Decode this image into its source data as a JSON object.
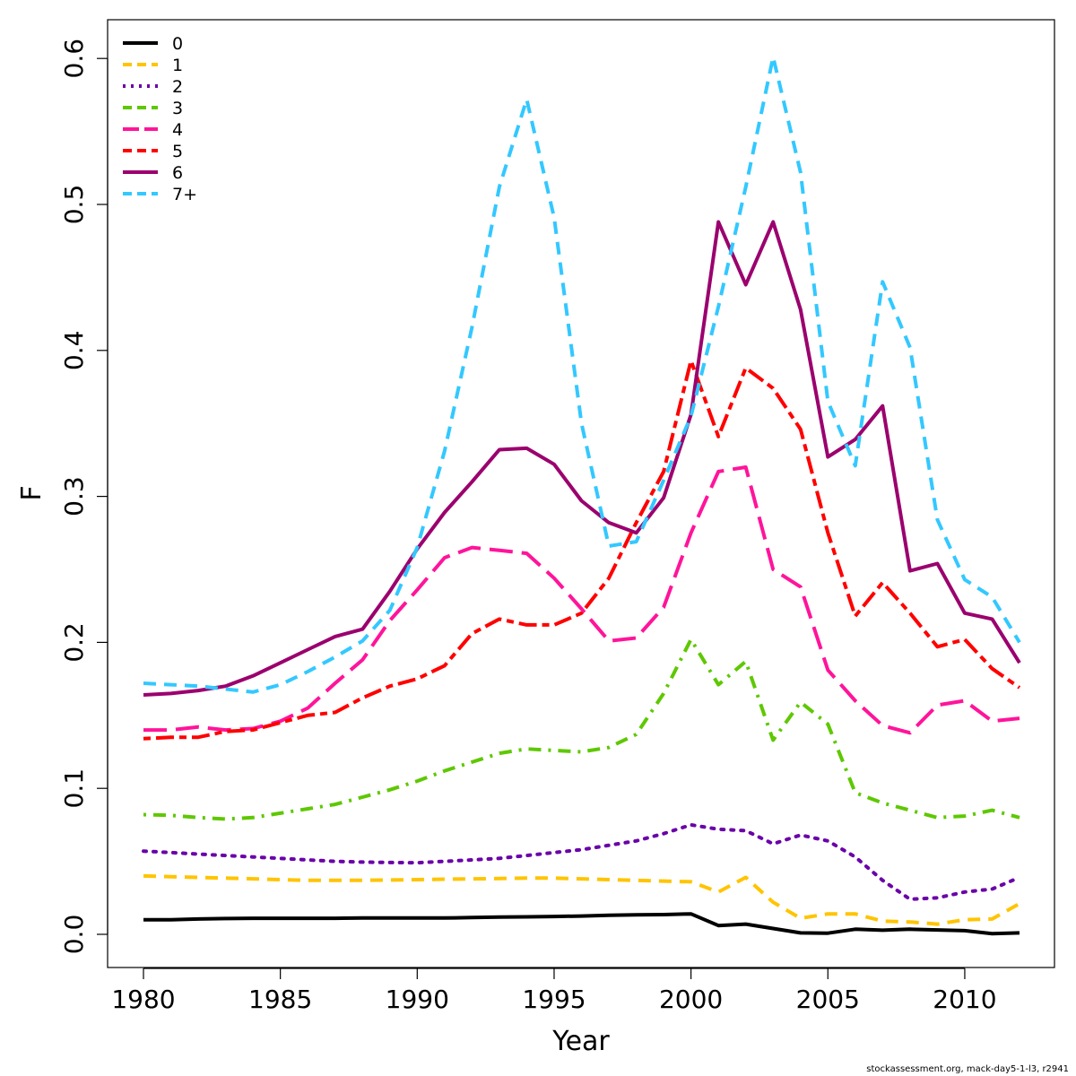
{
  "chart_data": {
    "type": "line",
    "title": "",
    "xlabel": "Year",
    "ylabel": "F",
    "xlim": [
      1978.7,
      1979.0
    ],
    "ylim": [
      -0.023,
      0.628
    ],
    "x_ticks": [
      "1980",
      "1985",
      "1990",
      "1995",
      "2000",
      "2005",
      "2010"
    ],
    "y_ticks": [
      "0.0",
      "0.1",
      "0.2",
      "0.3",
      "0.4",
      "0.5",
      "0.6"
    ],
    "legend_position": "top-left",
    "x": [
      1980,
      1981,
      1982,
      1983,
      1984,
      1985,
      1986,
      1987,
      1988,
      1989,
      1990,
      1991,
      1992,
      1993,
      1994,
      1995,
      1996,
      1997,
      1998,
      1999,
      2000,
      2001,
      2002,
      2003,
      2004,
      2005,
      2006,
      2007,
      2008,
      2009,
      2010,
      2011,
      2012
    ],
    "series": [
      {
        "name": "0",
        "color": "#000000",
        "dash": "solid",
        "values": [
          0.01,
          0.01,
          0.0105,
          0.0108,
          0.011,
          0.011,
          0.011,
          0.011,
          0.0112,
          0.0112,
          0.0112,
          0.0112,
          0.0115,
          0.0118,
          0.012,
          0.0122,
          0.0125,
          0.013,
          0.0133,
          0.0135,
          0.014,
          0.006,
          0.007,
          0.004,
          0.001,
          0.0008,
          0.0035,
          0.0028,
          0.0035,
          0.003,
          0.0025,
          0.0005,
          0.001
        ]
      },
      {
        "name": "1",
        "color": "#ffc400",
        "dash": "dashed",
        "values": [
          0.04,
          0.0395,
          0.039,
          0.0385,
          0.038,
          0.0375,
          0.037,
          0.037,
          0.037,
          0.0372,
          0.0375,
          0.0378,
          0.038,
          0.0382,
          0.0385,
          0.0385,
          0.038,
          0.0375,
          0.037,
          0.0365,
          0.036,
          0.029,
          0.039,
          0.022,
          0.011,
          0.014,
          0.014,
          0.009,
          0.0085,
          0.007,
          0.01,
          0.0105,
          0.021
        ]
      },
      {
        "name": "2",
        "color": "#6a00a8",
        "dash": "dotted",
        "values": [
          0.057,
          0.056,
          0.055,
          0.054,
          0.053,
          0.052,
          0.051,
          0.05,
          0.0495,
          0.0492,
          0.049,
          0.05,
          0.051,
          0.052,
          0.054,
          0.056,
          0.058,
          0.061,
          0.064,
          0.069,
          0.075,
          0.072,
          0.071,
          0.062,
          0.068,
          0.064,
          0.053,
          0.037,
          0.024,
          0.025,
          0.029,
          0.031,
          0.039
        ]
      },
      {
        "name": "3",
        "color": "#5ec800",
        "dash": "dashdot",
        "values": [
          0.082,
          0.0815,
          0.08,
          0.079,
          0.08,
          0.083,
          0.086,
          0.089,
          0.094,
          0.099,
          0.105,
          0.112,
          0.118,
          0.124,
          0.127,
          0.126,
          0.125,
          0.128,
          0.137,
          0.165,
          0.202,
          0.171,
          0.187,
          0.133,
          0.159,
          0.144,
          0.097,
          0.09,
          0.085,
          0.08,
          0.081,
          0.085,
          0.08
        ]
      },
      {
        "name": "4",
        "color": "#ff149a",
        "dash": "longdash",
        "values": [
          0.14,
          0.14,
          0.142,
          0.14,
          0.141,
          0.146,
          0.155,
          0.172,
          0.188,
          0.215,
          0.236,
          0.258,
          0.265,
          0.263,
          0.261,
          0.244,
          0.223,
          0.201,
          0.203,
          0.224,
          0.275,
          0.317,
          0.32,
          0.25,
          0.238,
          0.181,
          0.16,
          0.143,
          0.138,
          0.157,
          0.16,
          0.146,
          0.148
        ]
      },
      {
        "name": "5",
        "color": "#ff0000",
        "dash": "twodash",
        "values": [
          0.134,
          0.135,
          0.135,
          0.139,
          0.14,
          0.145,
          0.15,
          0.152,
          0.162,
          0.17,
          0.175,
          0.184,
          0.206,
          0.216,
          0.212,
          0.212,
          0.22,
          0.244,
          0.282,
          0.317,
          0.393,
          0.341,
          0.388,
          0.374,
          0.346,
          0.275,
          0.218,
          0.241,
          0.22,
          0.197,
          0.202,
          0.182,
          0.169
        ]
      },
      {
        "name": "6",
        "color": "#9b006e",
        "dash": "solid",
        "values": [
          0.164,
          0.165,
          0.167,
          0.17,
          0.177,
          0.186,
          0.195,
          0.204,
          0.209,
          0.235,
          0.264,
          0.289,
          0.31,
          0.332,
          0.333,
          0.322,
          0.297,
          0.282,
          0.275,
          0.299,
          0.356,
          0.488,
          0.445,
          0.488,
          0.428,
          0.327,
          0.339,
          0.362,
          0.249,
          0.254,
          0.22,
          0.216,
          0.186
        ]
      },
      {
        "name": "7+",
        "color": "#33c8ff",
        "dash": "dashed",
        "values": [
          0.172,
          0.171,
          0.17,
          0.168,
          0.166,
          0.171,
          0.18,
          0.19,
          0.201,
          0.222,
          0.265,
          0.331,
          0.416,
          0.512,
          0.572,
          0.491,
          0.35,
          0.266,
          0.269,
          0.311,
          0.355,
          0.43,
          0.512,
          0.601,
          0.522,
          0.365,
          0.321,
          0.447,
          0.402,
          0.284,
          0.243,
          0.231,
          0.2
        ]
      }
    ]
  },
  "footer": "stockassessment.org, mack-day5-1-l3, r2941"
}
